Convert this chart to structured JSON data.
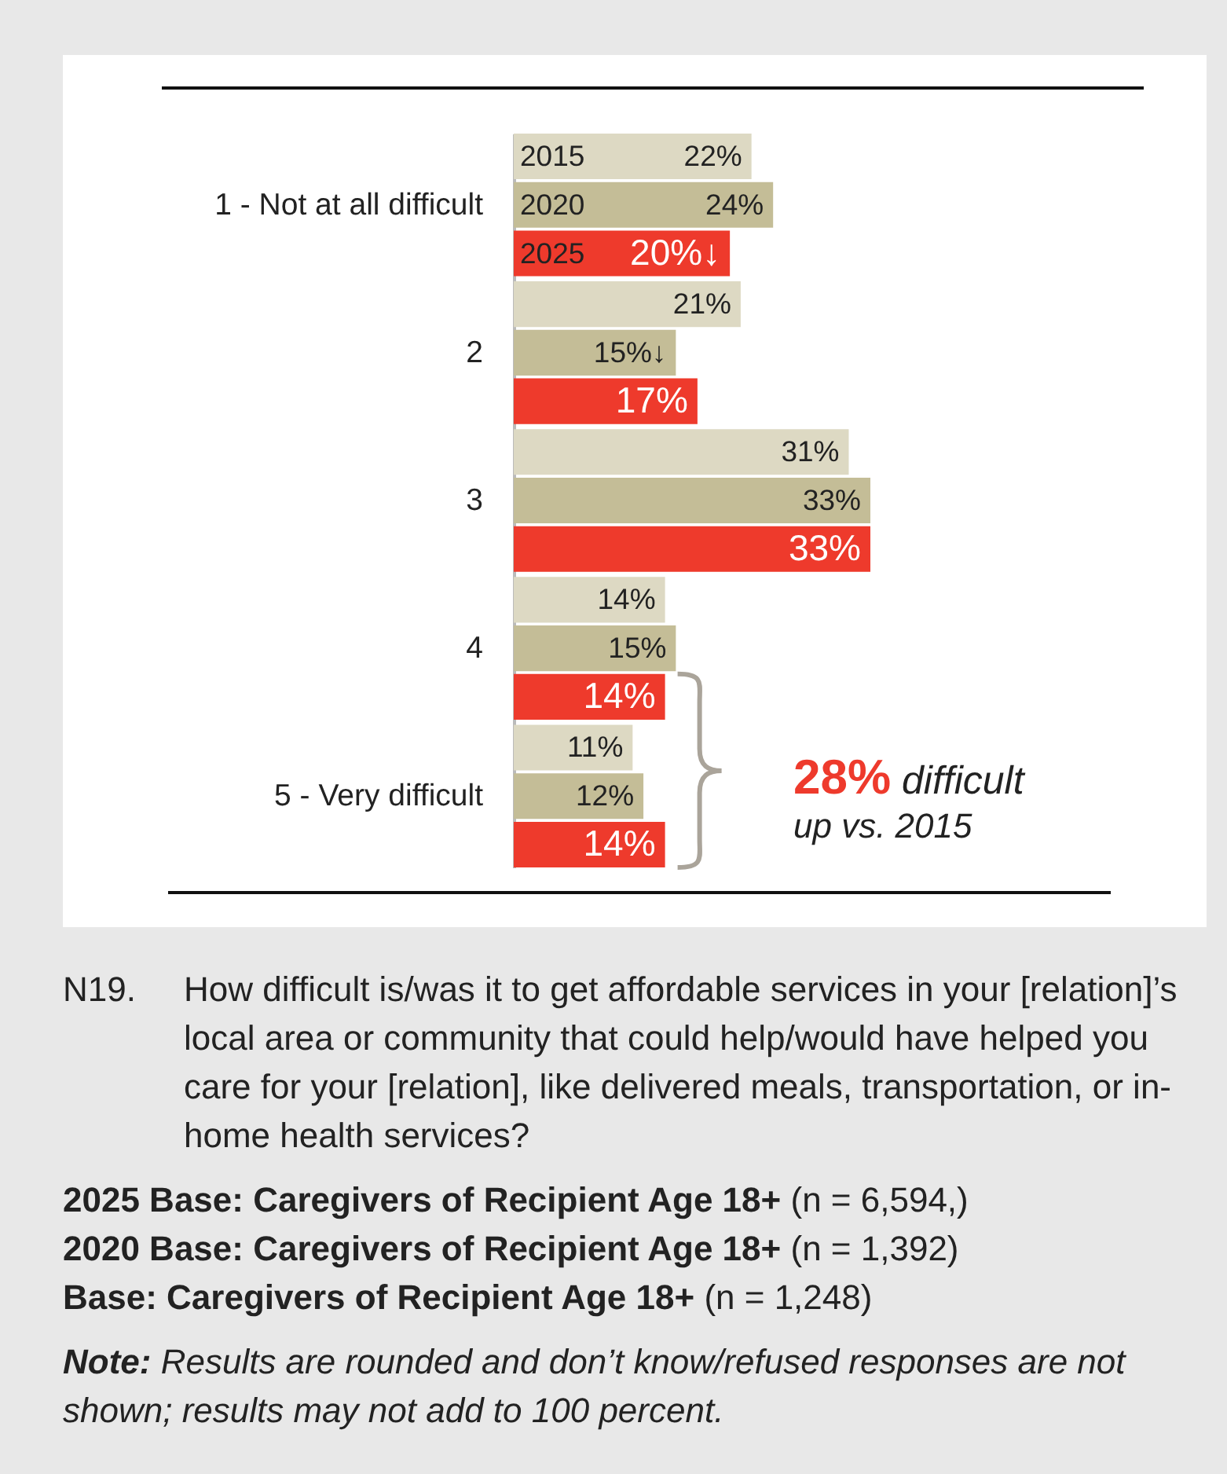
{
  "chart_data": {
    "type": "bar",
    "orientation": "horizontal",
    "legend": false,
    "categories": [
      "1 - Not at all difficult",
      "2",
      "3",
      "4",
      "5 - Very difficult"
    ],
    "series": [
      {
        "name": "2015",
        "color": "#ddd9c3",
        "values": [
          22,
          21,
          31,
          14,
          11
        ],
        "value_labels": [
          "22%",
          "21%",
          "31%",
          "14%",
          "11%"
        ]
      },
      {
        "name": "2020",
        "color": "#c4bd97",
        "values": [
          24,
          15,
          33,
          15,
          12
        ],
        "value_labels": [
          "24%",
          "15%↓",
          "33%",
          "15%",
          "12%"
        ]
      },
      {
        "name": "2025",
        "color": "#ee3a2c",
        "values": [
          20,
          17,
          33,
          14,
          14
        ],
        "value_labels": [
          "20%↓",
          "17%",
          "33%",
          "14%",
          "14%"
        ]
      }
    ],
    "annotations": [
      "28% difficult",
      "up vs. 2015",
      "N19. How difficult is/was it to get affordable services in your [relation]’s local area or community that could help/would have helped you care for your [relation], like delivered meals, transportation, or in-home health services?",
      "2025 Base: Caregivers of Recipient Age 18+ (n = 6,594,)",
      "2020 Base: Caregivers of Recipient Age 18+ (n = 1,392)",
      "Base: Caregivers of Recipient Age 18+ (n = 1,248)",
      "Note: Results are rounded and don’t know/refused responses are not shown; results may not add to 100 percent."
    ]
  }
}
